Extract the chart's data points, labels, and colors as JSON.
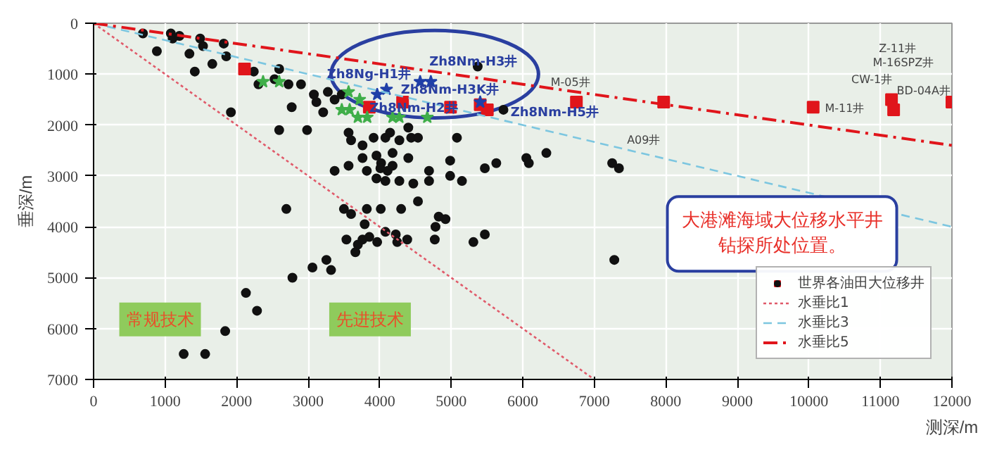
{
  "chart_data": {
    "type": "scatter",
    "xlabel": "测深/m",
    "ylabel": "垂深/m",
    "xlim": [
      0,
      12000
    ],
    "ylim": [
      7000,
      0
    ],
    "xticks": [
      0,
      1000,
      2000,
      3000,
      4000,
      5000,
      6000,
      7000,
      8000,
      9000,
      10000,
      11000,
      12000
    ],
    "yticks": [
      0,
      1000,
      2000,
      3000,
      4000,
      5000,
      6000,
      7000
    ],
    "grid": true,
    "legend": "bottom right",
    "series": [
      {
        "name": "世界各油田大位移井",
        "marker": "circle",
        "color": "#111111",
        "x": [
          690,
          885,
          1080,
          1105,
          1200,
          1340,
          1415,
          1490,
          1530,
          1660,
          1820,
          1855,
          1920,
          2240,
          2305,
          2530,
          2595,
          2725,
          2770,
          2900,
          2595,
          2985,
          2695,
          3080,
          3115,
          3210,
          3275,
          3370,
          3470,
          3565,
          3600,
          3760,
          3915,
          4080,
          4145,
          4275,
          4400,
          4440,
          4535,
          3760,
          3955,
          4020,
          4180,
          4400,
          3370,
          3565,
          3820,
          4010,
          4110,
          4180,
          3955,
          4080,
          4275,
          4470,
          4690,
          4690,
          4985,
          4985,
          5150,
          5470,
          5630,
          6050,
          5080,
          3500,
          3600,
          3820,
          4015,
          4300,
          4535,
          4825,
          4920,
          5370,
          5730,
          3535,
          3660,
          3695,
          3760,
          3790,
          3855,
          3965,
          4080,
          4225,
          4245,
          4385,
          4770,
          4780,
          5310,
          5470,
          2780,
          3060,
          3255,
          3320,
          2130,
          2285,
          1840,
          1260,
          1560,
          7280,
          6085,
          6330,
          7250,
          7345
        ],
        "values": [
          200,
          550,
          200,
          300,
          250,
          600,
          950,
          300,
          450,
          800,
          400,
          650,
          1750,
          950,
          1200,
          1100,
          900,
          1200,
          1650,
          1200,
          2100,
          2100,
          3650,
          1400,
          1550,
          1750,
          1350,
          1500,
          1400,
          2150,
          2300,
          2400,
          2250,
          2250,
          2150,
          2300,
          2050,
          2250,
          2250,
          2650,
          2600,
          2750,
          2550,
          2650,
          2900,
          2800,
          2900,
          2850,
          2900,
          2800,
          3050,
          3100,
          3100,
          3150,
          2900,
          3100,
          2700,
          3000,
          3100,
          2850,
          2750,
          2650,
          2250,
          3650,
          3750,
          3650,
          3650,
          3650,
          3500,
          3800,
          3850,
          850,
          1700,
          4250,
          4500,
          4350,
          4250,
          3950,
          4200,
          4300,
          4100,
          4150,
          4300,
          4250,
          4250,
          4000,
          4300,
          4150,
          5000,
          4800,
          4650,
          4850,
          5300,
          5650,
          6050,
          6500,
          6500,
          4650,
          2750,
          2550,
          2750,
          2850
        ]
      },
      {
        "marker": "square",
        "color": "#e0151b",
        "x": [
          2110,
          3855,
          4320,
          4990,
          5405,
          5505,
          6750,
          7970,
          10060,
          11155,
          11185,
          12000
        ],
        "values": [
          900,
          1650,
          1550,
          1650,
          1600,
          1700,
          1550,
          1550,
          1650,
          1500,
          1700,
          1550
        ]
      },
      {
        "marker": "star",
        "color": "#1f3fa8",
        "x": [
          3965,
          4095,
          4565,
          4715,
          5405
        ],
        "values": [
          1400,
          1300,
          1150,
          1150,
          1550
        ]
      },
      {
        "marker": "star",
        "color": "#3fae49",
        "x": [
          2370,
          2595,
          3470,
          3580,
          3695,
          3825,
          4180,
          4275,
          4665,
          3565,
          3720
        ],
        "values": [
          1150,
          1150,
          1700,
          1700,
          1850,
          1850,
          1850,
          1850,
          1850,
          1350,
          1500
        ]
      },
      {
        "name": "水垂比1",
        "type": "line",
        "line_style": "dotted",
        "color": "#e05a6a",
        "x": [
          0,
          7000
        ],
        "values": [
          0,
          7000
        ]
      },
      {
        "name": "水垂比3",
        "type": "line",
        "line_style": "dashed",
        "color": "#7cc6e0",
        "x": [
          0,
          12000
        ],
        "values": [
          0,
          4000
        ]
      },
      {
        "name": "水垂比5",
        "type": "line",
        "line_style": "dashdot",
        "color": "#e0151b",
        "x": [
          0,
          12000
        ],
        "values": [
          0,
          2400
        ]
      }
    ],
    "annotations": [
      "Zh8Ng-H1井",
      "Zh8Nm-H3井",
      "Zh8Nm-H3K井",
      "Zh8Nm-H2井",
      "Zh8Nm-H5井",
      "M-05井",
      "M-11井",
      "Z-11井",
      "M-16SPZ井",
      "CW-1井",
      "BD-04A井",
      "A09井",
      "大港滩海域大位移水平井钻探所处位置。",
      "常规技术",
      "先进技术"
    ]
  }
}
